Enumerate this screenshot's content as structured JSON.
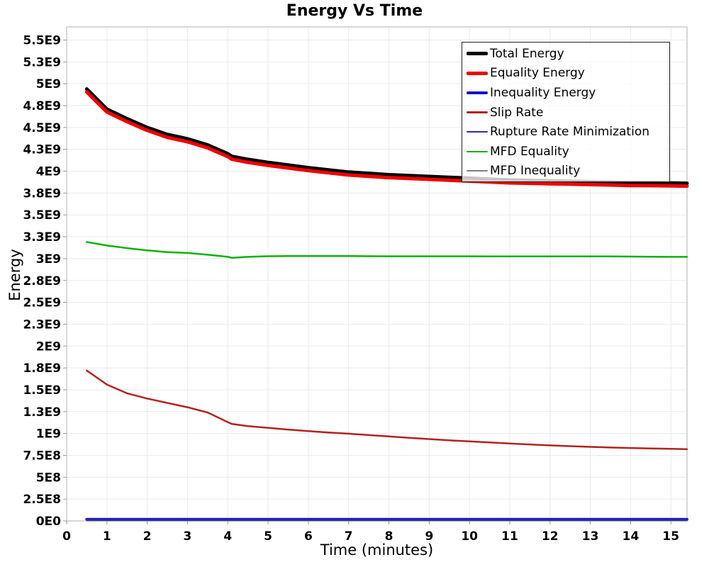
{
  "chart_data": {
    "type": "line",
    "title": "Energy Vs Time",
    "xlabel": "Time (minutes)",
    "ylabel": "Energy",
    "xlim": [
      0,
      15.4
    ],
    "ylim": [
      0,
      5650000000.0
    ],
    "grid": true,
    "legend_position": "top-right",
    "background_color": "#ffffff",
    "gridline_color": "#e9e9e9",
    "border_color": "#c4c4c4",
    "tick_color": "#999999",
    "x_ticks": [
      {
        "value": 0,
        "label": "0"
      },
      {
        "value": 1,
        "label": "1"
      },
      {
        "value": 2,
        "label": "2"
      },
      {
        "value": 3,
        "label": "3"
      },
      {
        "value": 4,
        "label": "4"
      },
      {
        "value": 5,
        "label": "5"
      },
      {
        "value": 6,
        "label": "6"
      },
      {
        "value": 7,
        "label": "7"
      },
      {
        "value": 8,
        "label": "8"
      },
      {
        "value": 9,
        "label": "9"
      },
      {
        "value": 10,
        "label": "10"
      },
      {
        "value": 11,
        "label": "11"
      },
      {
        "value": 12,
        "label": "12"
      },
      {
        "value": 13,
        "label": "13"
      },
      {
        "value": 14,
        "label": "14"
      },
      {
        "value": 15,
        "label": "15"
      }
    ],
    "y_ticks": [
      {
        "value": 0,
        "label": "0E0"
      },
      {
        "value": 250000000.0,
        "label": "2.5E8"
      },
      {
        "value": 500000000.0,
        "label": "5E8"
      },
      {
        "value": 750000000.0,
        "label": "7.5E8"
      },
      {
        "value": 1000000000.0,
        "label": "1E9"
      },
      {
        "value": 1250000000.0,
        "label": "1.3E9"
      },
      {
        "value": 1500000000.0,
        "label": "1.5E9"
      },
      {
        "value": 1750000000.0,
        "label": "1.8E9"
      },
      {
        "value": 2000000000.0,
        "label": "2E9"
      },
      {
        "value": 2250000000.0,
        "label": "2.3E9"
      },
      {
        "value": 2500000000.0,
        "label": "2.5E9"
      },
      {
        "value": 2750000000.0,
        "label": "2.8E9"
      },
      {
        "value": 3000000000.0,
        "label": "3E9"
      },
      {
        "value": 3250000000.0,
        "label": "3.3E9"
      },
      {
        "value": 3500000000.0,
        "label": "3.5E9"
      },
      {
        "value": 3750000000.0,
        "label": "3.8E9"
      },
      {
        "value": 4000000000.0,
        "label": "4E9"
      },
      {
        "value": 4250000000.0,
        "label": "4.3E9"
      },
      {
        "value": 4500000000.0,
        "label": "4.5E9"
      },
      {
        "value": 4750000000.0,
        "label": "4.8E9"
      },
      {
        "value": 5000000000.0,
        "label": "5E9"
      },
      {
        "value": 5250000000.0,
        "label": "5.3E9"
      },
      {
        "value": 5500000000.0,
        "label": "5.5E9"
      }
    ],
    "series": [
      {
        "name": "Total Energy",
        "color": "#000000",
        "width": 5,
        "z": 6,
        "x": [
          0.5,
          1,
          1.5,
          2,
          2.5,
          3,
          3.5,
          4,
          4.1,
          4.5,
          5,
          5.5,
          6,
          6.5,
          7,
          7.5,
          8,
          8.5,
          9,
          9.5,
          10,
          10.5,
          11,
          11.5,
          12,
          12.5,
          13,
          13.5,
          14,
          14.5,
          15,
          15.4
        ],
        "y": [
          4940000000.0,
          4710000000.0,
          4600000000.0,
          4500000000.0,
          4420000000.0,
          4370000000.0,
          4300000000.0,
          4200000000.0,
          4170000000.0,
          4135000000.0,
          4100000000.0,
          4070000000.0,
          4040000000.0,
          4015000000.0,
          3990000000.0,
          3975000000.0,
          3960000000.0,
          3950000000.0,
          3940000000.0,
          3930000000.0,
          3920000000.0,
          3910000000.0,
          3900000000.0,
          3895000000.0,
          3890000000.0,
          3885000000.0,
          3880000000.0,
          3875000000.0,
          3870000000.0,
          3868000000.0,
          3865000000.0,
          3862000000.0
        ]
      },
      {
        "name": "Equality Energy",
        "color": "#ee0000",
        "width": 5,
        "z": 7,
        "x": [
          0.5,
          1,
          1.5,
          2,
          2.5,
          3,
          3.5,
          4,
          4.1,
          4.5,
          5,
          5.5,
          6,
          6.5,
          7,
          7.5,
          8,
          8.5,
          9,
          9.5,
          10,
          10.5,
          11,
          11.5,
          12,
          12.5,
          13,
          13.5,
          14,
          14.5,
          15,
          15.4
        ],
        "y": [
          4907000000.0,
          4677000000.0,
          4567000000.0,
          4467000000.0,
          4387000000.0,
          4337000000.0,
          4267000000.0,
          4167000000.0,
          4137000000.0,
          4102000000.0,
          4067000000.0,
          4037000000.0,
          4007000000.0,
          3982000000.0,
          3957000000.0,
          3942000000.0,
          3927000000.0,
          3917000000.0,
          3907000000.0,
          3897000000.0,
          3887000000.0,
          3877000000.0,
          3867000000.0,
          3862000000.0,
          3857000000.0,
          3852000000.0,
          3847000000.0,
          3842000000.0,
          3837000000.0,
          3835000000.0,
          3832000000.0,
          3829000000.0
        ]
      },
      {
        "name": "Inequality Energy",
        "color": "#1111cc",
        "width": 4,
        "z": 2,
        "x": [
          0.5,
          15.4
        ],
        "y": [
          18000000.0,
          18000000.0
        ]
      },
      {
        "name": "Slip Rate",
        "color": "#b22222",
        "width": 2.5,
        "z": 5,
        "x": [
          0.5,
          1,
          1.5,
          2,
          2.5,
          3,
          3.5,
          4,
          4.1,
          4.5,
          5,
          5.5,
          6,
          6.5,
          7,
          7.5,
          8,
          8.5,
          9,
          9.5,
          10,
          10.5,
          11,
          11.5,
          12,
          12.5,
          13,
          13.5,
          14,
          14.5,
          15,
          15.4
        ],
        "y": [
          1720000000.0,
          1560000000.0,
          1460000000.0,
          1400000000.0,
          1350000000.0,
          1300000000.0,
          1240000000.0,
          1130000000.0,
          1110000000.0,
          1085000000.0,
          1065000000.0,
          1045000000.0,
          1028000000.0,
          1012000000.0,
          998000000.0,
          982000000.0,
          966000000.0,
          950000000.0,
          936000000.0,
          922000000.0,
          910000000.0,
          898000000.0,
          886000000.0,
          875000000.0,
          864000000.0,
          855000000.0,
          847000000.0,
          840000000.0,
          834000000.0,
          829000000.0,
          824000000.0,
          820000000.0
        ]
      },
      {
        "name": "Rupture Rate Minimization",
        "color": "#2e2e9e",
        "width": 2.5,
        "z": 3,
        "x": [
          0.5,
          15.4
        ],
        "y": [
          12000000.0,
          12000000.0
        ]
      },
      {
        "name": "MFD Equality",
        "color": "#0eb00e",
        "width": 2.5,
        "z": 4,
        "x": [
          0.5,
          1,
          1.5,
          2,
          2.5,
          3,
          3.5,
          4,
          4.1,
          4.5,
          5,
          5.5,
          6,
          6.5,
          7,
          7.5,
          8,
          8.5,
          9,
          9.5,
          10,
          10.5,
          11,
          11.5,
          12,
          12.5,
          13,
          13.5,
          14,
          14.5,
          15,
          15.4
        ],
        "y": [
          3190000000.0,
          3150000000.0,
          3120000000.0,
          3095000000.0,
          3075000000.0,
          3065000000.0,
          3045000000.0,
          3020000000.0,
          3010000000.0,
          3020000000.0,
          3028000000.0,
          3030000000.0,
          3030000000.0,
          3030000000.0,
          3030000000.0,
          3028000000.0,
          3027000000.0,
          3027000000.0,
          3027000000.0,
          3027000000.0,
          3027000000.0,
          3026000000.0,
          3025000000.0,
          3025000000.0,
          3025000000.0,
          3025000000.0,
          3025000000.0,
          3025000000.0,
          3024000000.0,
          3022000000.0,
          3020000000.0,
          3020000000.0
        ]
      },
      {
        "name": "MFD Inequality",
        "color": "#808080",
        "width": 2,
        "z": 1,
        "x": [
          0.5,
          15.4
        ],
        "y": [
          4000000.0,
          4000000.0
        ]
      }
    ]
  }
}
